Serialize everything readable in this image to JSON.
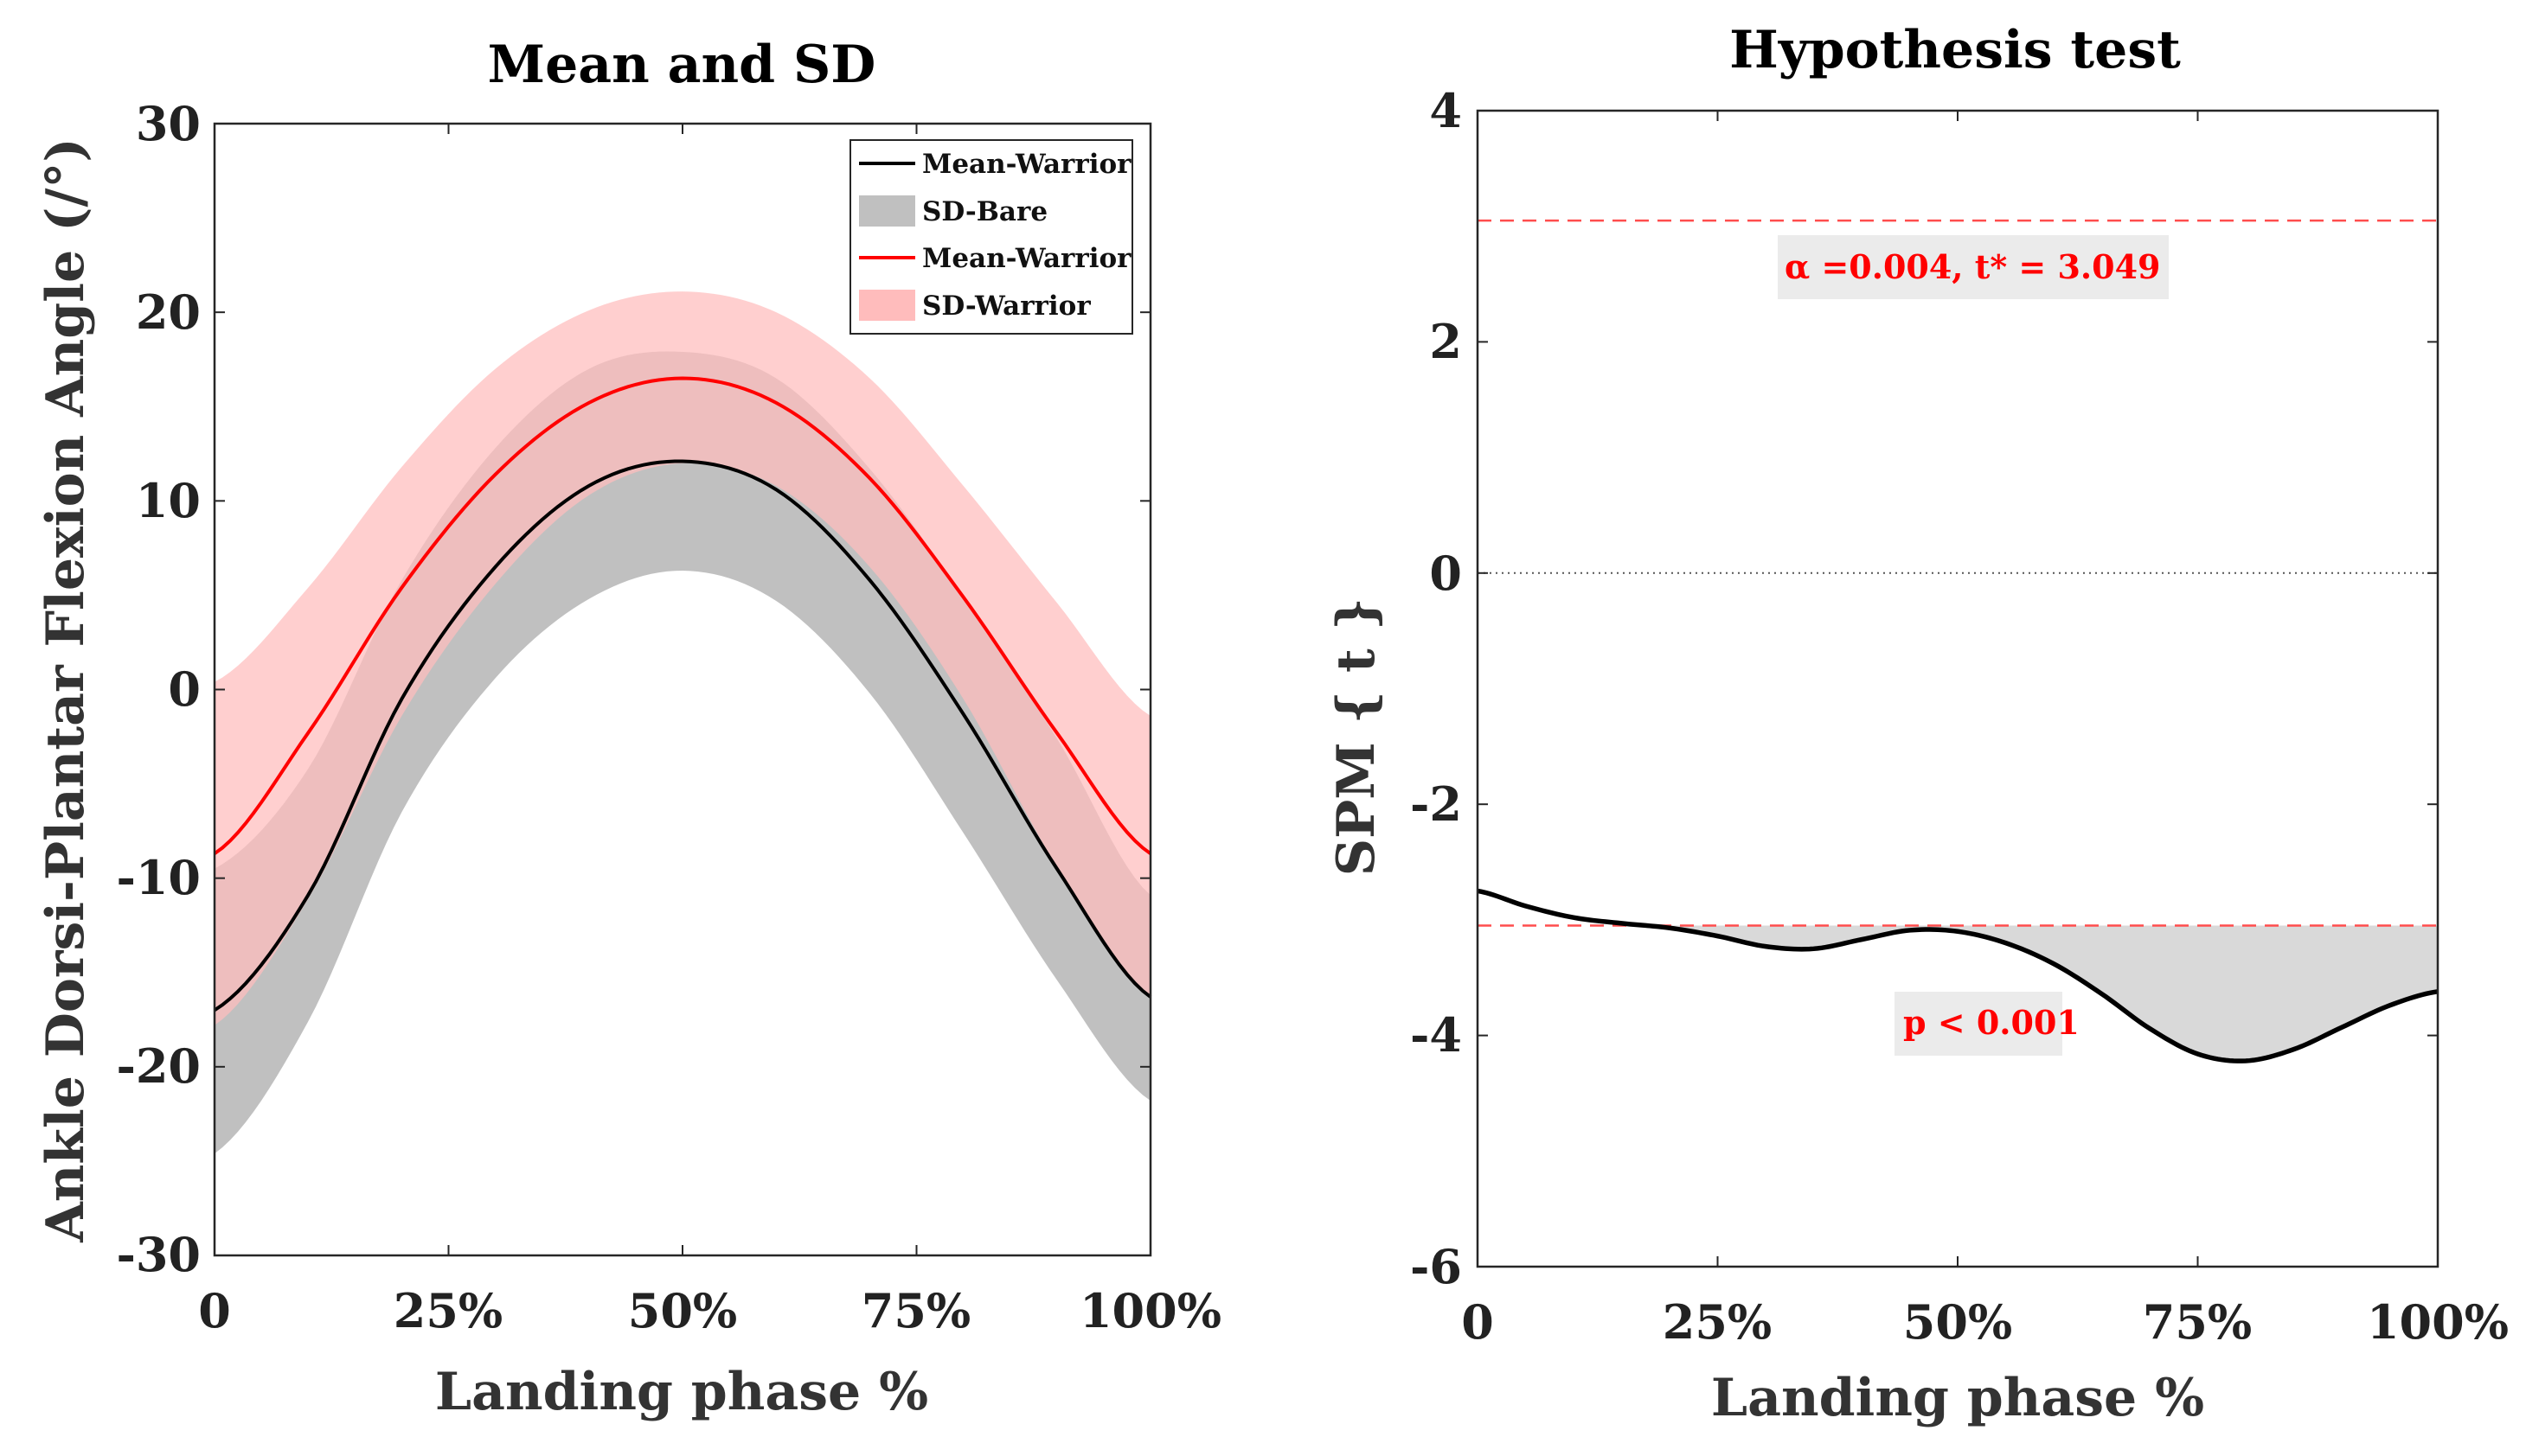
{
  "chart_data": [
    {
      "type": "line",
      "title": "Mean and SD",
      "xlabel": "Landing phase %",
      "ylabel": "Ankle Dorsi-Plantar Flexion Angle (/°)",
      "xlim": [
        0,
        100
      ],
      "ylim": [
        -30,
        30
      ],
      "x_ticks": [
        0,
        25,
        50,
        75,
        100
      ],
      "x_tick_labels": [
        "0",
        "25%",
        "50%",
        "75%",
        "100%"
      ],
      "y_ticks": [
        30,
        20,
        10,
        0,
        -10,
        -20,
        -30
      ],
      "y_tick_labels": [
        "30",
        "20",
        "10",
        "0",
        "-10",
        "-20",
        "-30"
      ],
      "x": [
        0,
        10,
        20,
        30,
        40,
        50,
        60,
        70,
        80,
        90,
        100
      ],
      "series": [
        {
          "name": "Mean-Warrior",
          "kind": "line",
          "color": "#000000",
          "values": [
            -17,
            -10.9,
            -0.5,
            6.5,
            10.8,
            12.1,
            10.6,
            5.8,
            -1.3,
            -9.5,
            -16.3
          ]
        },
        {
          "name": "SD-Bare",
          "kind": "band",
          "color": "#c0c0c0",
          "lower": [
            -24.6,
            -17.6,
            -6.5,
            0.6,
            4.8,
            6.3,
            4.7,
            -0.2,
            -7.6,
            -15.4,
            -21.8
          ],
          "upper": [
            -9.5,
            -4.2,
            5.8,
            12.8,
            17,
            17.9,
            16.5,
            11.7,
            4.9,
            -2.6,
            -10.9
          ]
        },
        {
          "name": "Mean-Warrior",
          "kind": "line",
          "color": "#ff0000",
          "values": [
            -8.7,
            -2.3,
            5.4,
            11.4,
            15.2,
            16.5,
            15.2,
            11.2,
            4.9,
            -2.3,
            -8.7
          ]
        },
        {
          "name": "SD-Warrior",
          "kind": "band",
          "color": "#ffbcbc",
          "lower": [
            -17.8,
            -11.1,
            -1.4,
            5.6,
            10.3,
            12,
            10.8,
            6.5,
            -0.5,
            -9.4,
            -16.4
          ],
          "upper": [
            0.4,
            5.4,
            11.8,
            17,
            20.1,
            21.1,
            20,
            16.5,
            10.8,
            4.6,
            -1.4
          ]
        }
      ],
      "legend": {
        "placement": "top-right",
        "entries": [
          "Mean-Warrior",
          "SD-Bare",
          "Mean-Warrior",
          "SD-Warrior"
        ]
      }
    },
    {
      "type": "line",
      "title": "Hypothesis test",
      "xlabel": "Landing phase %",
      "ylabel": "SPM { t }",
      "xlim": [
        0,
        100
      ],
      "ylim": [
        -6,
        4
      ],
      "x_ticks": [
        0,
        25,
        50,
        75,
        100
      ],
      "x_tick_labels": [
        "0",
        "25%",
        "50%",
        "75%",
        "100%"
      ],
      "y_ticks": [
        4,
        2,
        0,
        -2,
        -4,
        -6
      ],
      "y_tick_labels": [
        "4",
        "2",
        "0",
        "-2",
        "-4",
        "-6"
      ],
      "threshold": 3.049,
      "x": [
        0,
        5,
        10,
        15,
        20,
        25,
        30,
        35,
        40,
        45,
        50,
        55,
        60,
        65,
        70,
        75,
        80,
        85,
        90,
        95,
        100
      ],
      "series": [
        {
          "name": "SPM{t}",
          "color": "#000000",
          "values": [
            -2.75,
            -2.88,
            -2.98,
            -3.03,
            -3.07,
            -3.14,
            -3.23,
            -3.25,
            -3.17,
            -3.09,
            -3.1,
            -3.2,
            -3.38,
            -3.64,
            -3.94,
            -4.16,
            -4.22,
            -4.12,
            -3.93,
            -3.74,
            -3.62
          ]
        }
      ],
      "annotations": {
        "alpha_text": "α =0.004,     t* = 3.049",
        "p_text": "p < 0.001"
      }
    }
  ]
}
